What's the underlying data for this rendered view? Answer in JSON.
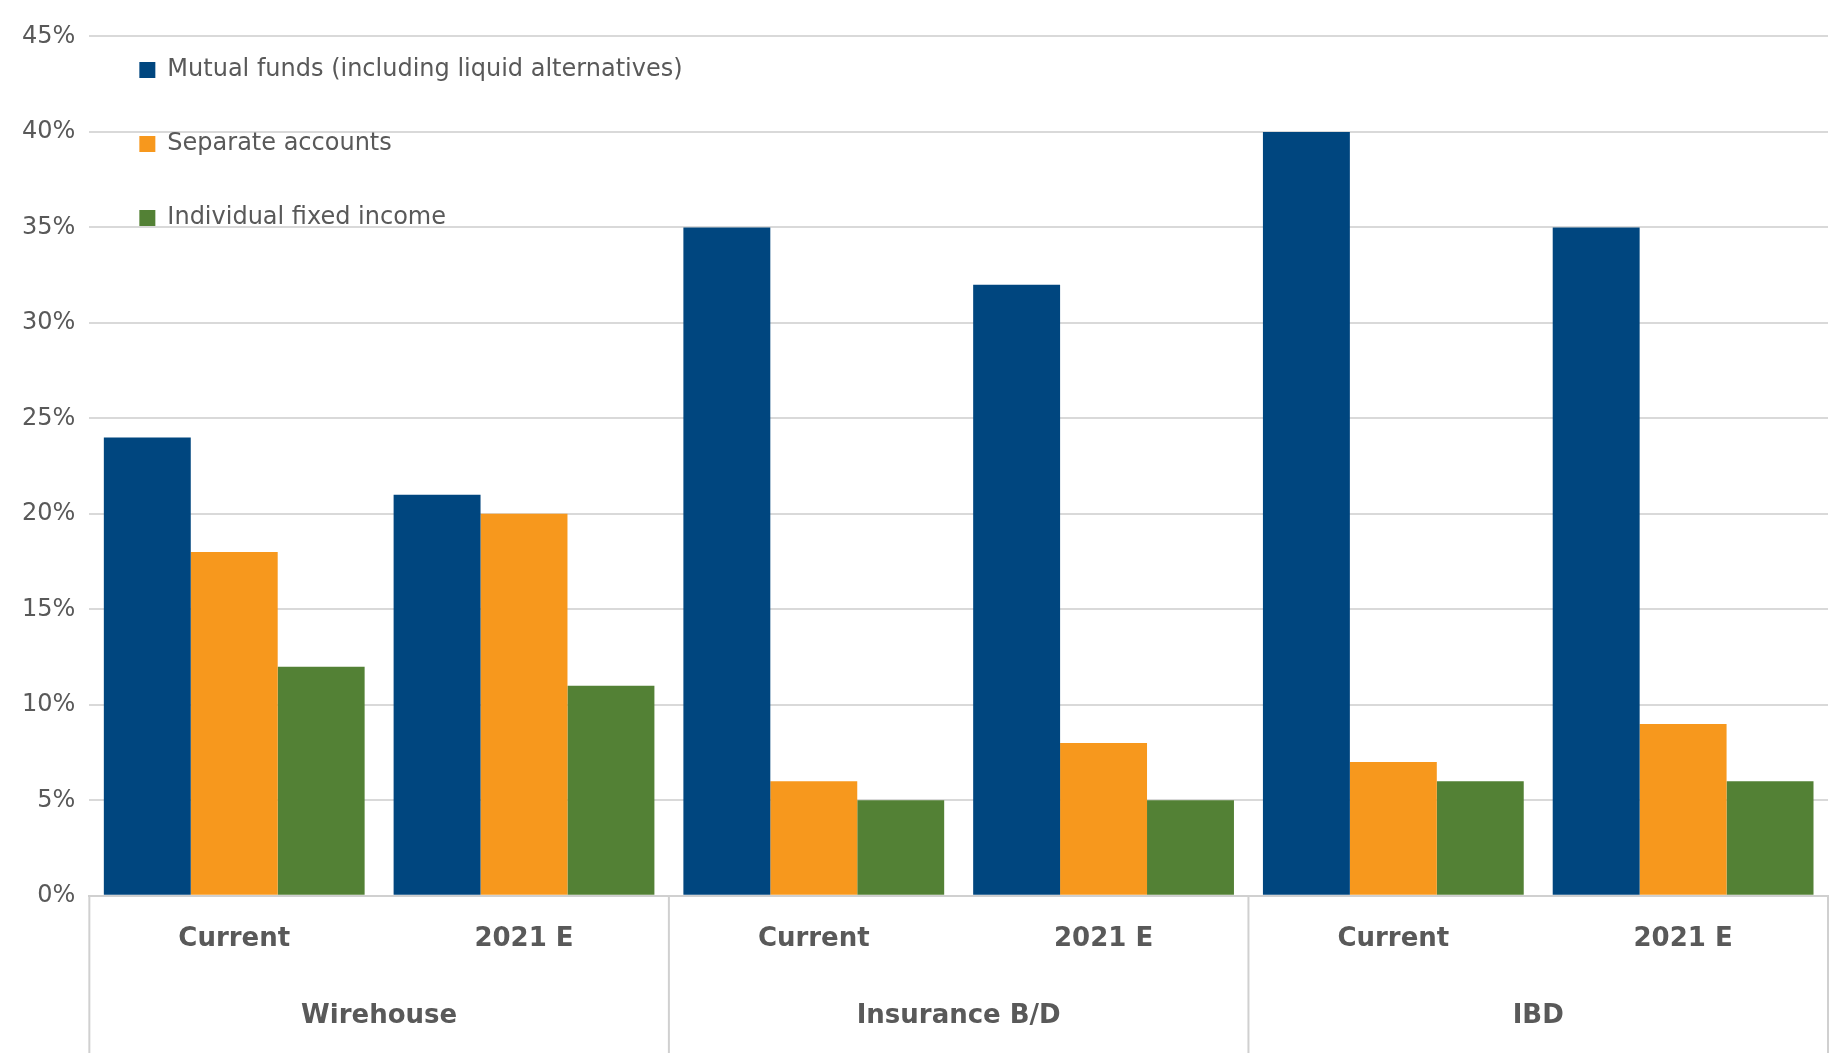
{
  "chart_data": {
    "type": "bar",
    "categories": [
      "Current",
      "2021 E",
      "Current",
      "2021 E",
      "Current",
      "2021 E"
    ],
    "series": [
      {
        "name": "Mutual funds (including liquid alternatives)",
        "color": "#00467f",
        "values": [
          24,
          21,
          35,
          32,
          40,
          35
        ]
      },
      {
        "name": "Separate accounts",
        "color": "#f7981d",
        "values": [
          18,
          20,
          6,
          8,
          7,
          9
        ]
      },
      {
        "name": "Individual fixed income",
        "color": "#538135",
        "values": [
          12,
          11,
          5,
          5,
          6,
          6
        ]
      }
    ],
    "ylim": [
      0,
      45
    ],
    "yticks": [
      {
        "value": 0,
        "label": "0%"
      },
      {
        "value": 5,
        "label": "5%"
      },
      {
        "value": 10,
        "label": "10%"
      },
      {
        "value": 15,
        "label": "15%"
      },
      {
        "value": 20,
        "label": "20%"
      },
      {
        "value": 25,
        "label": "25%"
      },
      {
        "value": 30,
        "label": "30%"
      },
      {
        "value": 35,
        "label": "35%"
      },
      {
        "value": 40,
        "label": "40%"
      },
      {
        "value": 45,
        "label": "45%"
      }
    ],
    "annotations": [
      "Wirehouse",
      "Insurance B/D",
      "IBD"
    ],
    "grid": "y",
    "legend": "top left"
  }
}
